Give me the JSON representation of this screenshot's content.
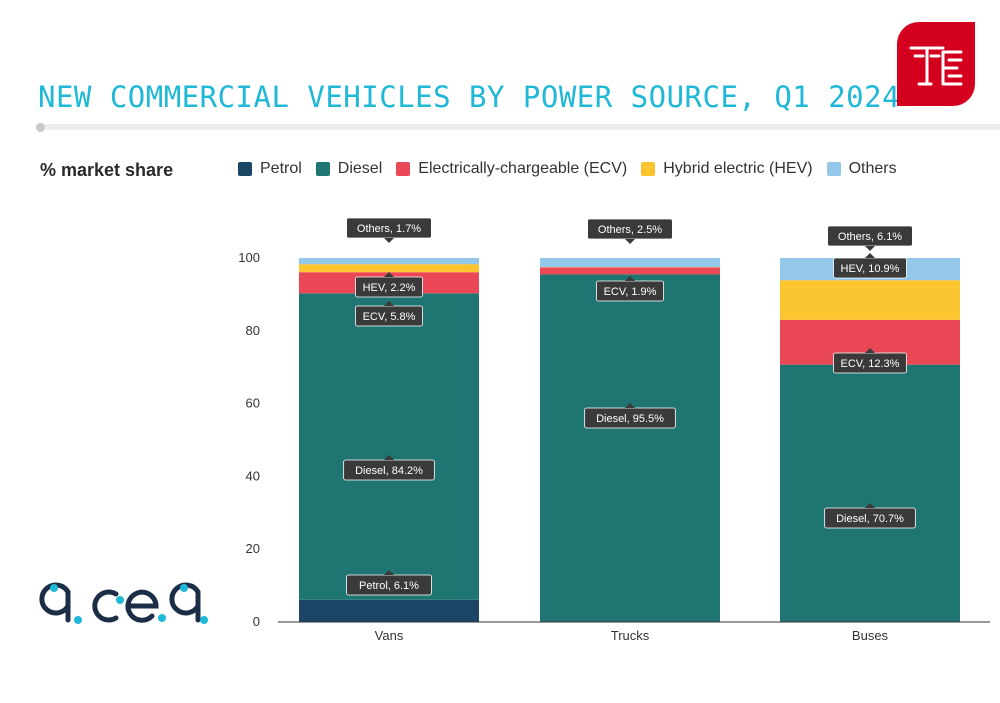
{
  "header": {
    "title": "NEW COMMERCIAL VEHICLES BY POWER SOURCE, Q1 2024"
  },
  "branding": {
    "te_logo_icon": "te-monogram-logo",
    "acea_logo_icon": "acea-logo",
    "acea_logo_text": "acea"
  },
  "colors": {
    "Petrol": "#1b4565",
    "Diesel": "#1f7572",
    "ECV": "#ea4857",
    "HEV": "#fbc530",
    "Others": "#94c8ea",
    "title": "#1fb8d6",
    "label_bg": "#3a3a3a"
  },
  "chart_data": {
    "type": "bar",
    "stacked": true,
    "title": "NEW COMMERCIAL VEHICLES BY POWER SOURCE, Q1 2024",
    "ylabel": "% market share",
    "xlabel": "",
    "ylim": [
      0,
      100
    ],
    "yticks": [
      0,
      20,
      40,
      60,
      80,
      100
    ],
    "categories": [
      "Vans",
      "Trucks",
      "Buses"
    ],
    "legend": [
      "Petrol",
      "Diesel",
      "Electrically-chargeable (ECV)",
      "Hybrid electric (HEV)",
      "Others"
    ],
    "legend_position": "top",
    "grid": false,
    "series": [
      {
        "name": "Petrol",
        "key": "Petrol",
        "values": [
          6.1,
          0,
          0
        ]
      },
      {
        "name": "Diesel",
        "key": "Diesel",
        "values": [
          84.2,
          95.5,
          70.7
        ]
      },
      {
        "name": "Electrically-chargeable (ECV)",
        "key": "ECV",
        "values": [
          5.8,
          1.9,
          12.3
        ]
      },
      {
        "name": "Hybrid electric (HEV)",
        "key": "HEV",
        "values": [
          2.2,
          0.1,
          10.9
        ]
      },
      {
        "name": "Others",
        "key": "Others",
        "values": [
          1.7,
          2.5,
          6.1
        ]
      }
    ],
    "annotations": [
      {
        "category": "Vans",
        "series": "Petrol",
        "text": "Petrol, 6.1%"
      },
      {
        "category": "Vans",
        "series": "Diesel",
        "text": "Diesel, 84.2%"
      },
      {
        "category": "Vans",
        "series": "ECV",
        "text": "ECV, 5.8%"
      },
      {
        "category": "Vans",
        "series": "HEV",
        "text": "HEV, 2.2%"
      },
      {
        "category": "Vans",
        "series": "Others",
        "text": "Others, 1.7%"
      },
      {
        "category": "Trucks",
        "series": "Diesel",
        "text": "Diesel, 95.5%"
      },
      {
        "category": "Trucks",
        "series": "ECV",
        "text": "ECV, 1.9%"
      },
      {
        "category": "Trucks",
        "series": "Others",
        "text": "Others, 2.5%"
      },
      {
        "category": "Buses",
        "series": "Diesel",
        "text": "Diesel, 70.7%"
      },
      {
        "category": "Buses",
        "series": "ECV",
        "text": "ECV, 12.3%"
      },
      {
        "category": "Buses",
        "series": "HEV",
        "text": "HEV, 10.9%"
      },
      {
        "category": "Buses",
        "series": "Others",
        "text": "Others, 6.1%"
      }
    ]
  }
}
